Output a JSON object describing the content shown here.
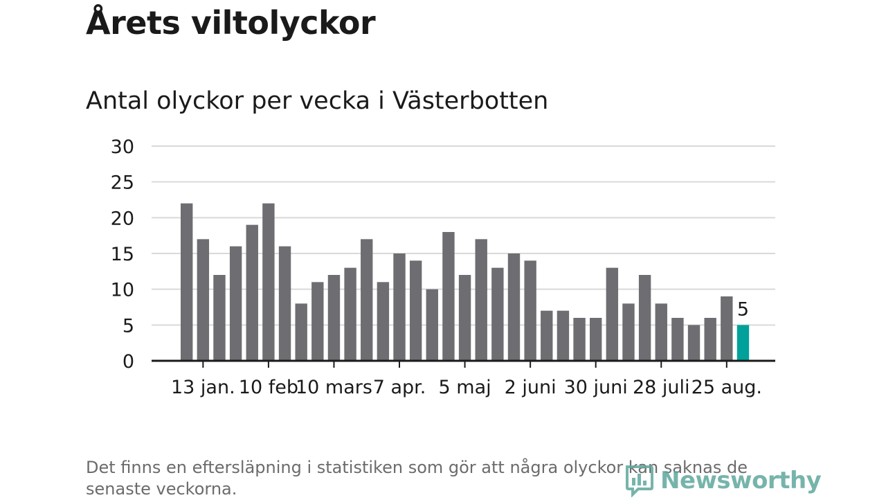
{
  "title": "Årets viltolyckor",
  "subtitle": "Antal olyckor per vecka i Västerbotten",
  "footnote": "Det finns en eftersläpning i statistiken som gör att några olyckor kan saknas de senaste veckorna.",
  "brand": {
    "name": "Newsworthy",
    "icon": "bar-chart-logo-icon"
  },
  "colors": {
    "bar": "#6e6d72",
    "highlight": "#00a19a",
    "grid": "#d9d9d9",
    "axis": "#1a1a1a"
  },
  "chart_data": {
    "type": "bar",
    "title": "Antal olyckor per vecka i Västerbotten",
    "xlabel": "",
    "ylabel": "",
    "ylim": [
      0,
      30
    ],
    "yticks": [
      0,
      5,
      10,
      15,
      20,
      25,
      30
    ],
    "grid": true,
    "values": [
      22,
      17,
      12,
      16,
      19,
      22,
      16,
      8,
      11,
      12,
      13,
      17,
      11,
      15,
      14,
      10,
      18,
      12,
      17,
      13,
      15,
      14,
      7,
      7,
      6,
      6,
      13,
      8,
      12,
      8,
      6,
      5,
      6,
      9,
      5
    ],
    "highlight": {
      "index": 34,
      "label": "5"
    },
    "xtick_labels": [
      {
        "index": 1,
        "label": "13 jan."
      },
      {
        "index": 5,
        "label": "10 feb"
      },
      {
        "index": 9,
        "label": "10 mars"
      },
      {
        "index": 13,
        "label": "7 apr."
      },
      {
        "index": 17,
        "label": "5 maj"
      },
      {
        "index": 21,
        "label": "2 juni"
      },
      {
        "index": 25,
        "label": "30 juni"
      },
      {
        "index": 29,
        "label": "28 juli"
      },
      {
        "index": 33,
        "label": "25 aug."
      }
    ]
  }
}
